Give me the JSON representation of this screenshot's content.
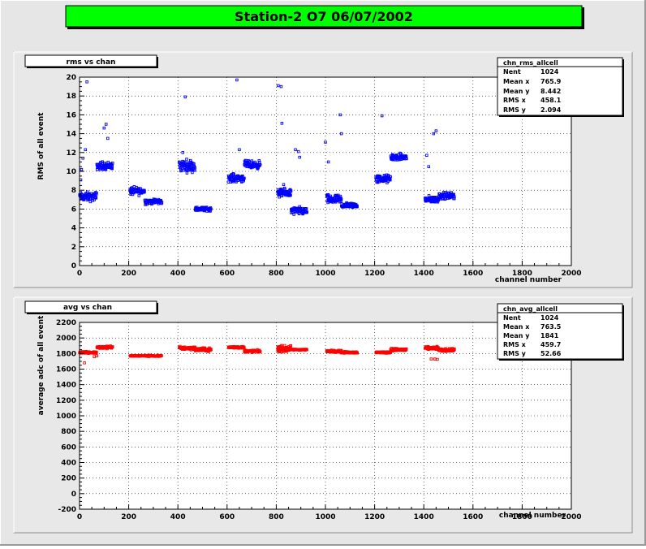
{
  "page": {
    "title": "Station-2 O7 06/07/2002",
    "colors": {
      "background": "#e6e6e6",
      "title_bg": "#00ff00",
      "frame": "#e8e8e8",
      "plot_bg": "#ffffff",
      "grid": "#000000"
    }
  },
  "chart_data": [
    {
      "type": "scatter",
      "panel_label": "rms vs chan",
      "xlabel": "channel number",
      "ylabel": "RMS of all event",
      "xlim": [
        0,
        2000
      ],
      "ylim": [
        0,
        20
      ],
      "x_ticks": [
        0,
        200,
        400,
        600,
        800,
        1000,
        1200,
        1400,
        1600,
        1800,
        2000
      ],
      "y_ticks": [
        0,
        2,
        4,
        6,
        8,
        10,
        12,
        14,
        16,
        18,
        20
      ],
      "y_tick_labels": [
        "0",
        "2",
        "4",
        "6",
        "8",
        "10",
        "12",
        "14",
        "16",
        "18",
        "20"
      ],
      "grid": true,
      "marker_color": "#0000ff",
      "stats": {
        "title": "chn_rms_allcell",
        "rows": [
          {
            "label": "Nent",
            "value": "1024"
          },
          {
            "label": "Mean x",
            "value": "765.9"
          },
          {
            "label": "Mean y",
            "value": "8.442"
          },
          {
            "label": "RMS x",
            "value": "458.1"
          },
          {
            "label": "RMS y",
            "value": "2.094"
          }
        ]
      },
      "clusters": [
        {
          "x": [
            0,
            70
          ],
          "y": 7.3,
          "spread": 0.7
        },
        {
          "x": [
            70,
            135
          ],
          "y": 10.6,
          "spread": 0.6
        },
        {
          "x": [
            205,
            265
          ],
          "y": 7.9,
          "spread": 0.6
        },
        {
          "x": [
            265,
            335
          ],
          "y": 6.8,
          "spread": 0.4
        },
        {
          "x": [
            405,
            470
          ],
          "y": 10.6,
          "spread": 0.9
        },
        {
          "x": [
            470,
            535
          ],
          "y": 6.0,
          "spread": 0.3
        },
        {
          "x": [
            605,
            670
          ],
          "y": 9.3,
          "spread": 0.6
        },
        {
          "x": [
            670,
            735
          ],
          "y": 10.7,
          "spread": 0.6
        },
        {
          "x": [
            805,
            860
          ],
          "y": 7.7,
          "spread": 0.6
        },
        {
          "x": [
            860,
            925
          ],
          "y": 5.8,
          "spread": 0.6
        },
        {
          "x": [
            1005,
            1065
          ],
          "y": 7.0,
          "spread": 0.7
        },
        {
          "x": [
            1065,
            1130
          ],
          "y": 6.4,
          "spread": 0.4
        },
        {
          "x": [
            1205,
            1265
          ],
          "y": 9.2,
          "spread": 0.6
        },
        {
          "x": [
            1265,
            1330
          ],
          "y": 11.5,
          "spread": 0.5
        },
        {
          "x": [
            1405,
            1460
          ],
          "y": 7.0,
          "spread": 0.5
        },
        {
          "x": [
            1460,
            1525
          ],
          "y": 7.4,
          "spread": 0.5
        }
      ],
      "outliers": [
        [
          5,
          9.1
        ],
        [
          8,
          10.2
        ],
        [
          14,
          11.4
        ],
        [
          24,
          12.3
        ],
        [
          30,
          19.5
        ],
        [
          100,
          14.6
        ],
        [
          108,
          15.0
        ],
        [
          115,
          13.5
        ],
        [
          420,
          12.0
        ],
        [
          430,
          17.9
        ],
        [
          640,
          19.7
        ],
        [
          650,
          12.3
        ],
        [
          808,
          19.1
        ],
        [
          820,
          19.0
        ],
        [
          823,
          15.1
        ],
        [
          830,
          8.6
        ],
        [
          878,
          12.3
        ],
        [
          890,
          12.1
        ],
        [
          895,
          11.5
        ],
        [
          1000,
          13.1
        ],
        [
          1012,
          11.0
        ],
        [
          1060,
          16.0
        ],
        [
          1065,
          14.0
        ],
        [
          1230,
          15.9
        ],
        [
          1412,
          11.7
        ],
        [
          1420,
          10.5
        ],
        [
          1440,
          14.0
        ],
        [
          1450,
          14.3
        ]
      ]
    },
    {
      "type": "scatter",
      "panel_label": "avg vs chan",
      "xlabel": "channel number",
      "ylabel": "average adc of all event",
      "xlim": [
        0,
        2000
      ],
      "ylim": [
        -200,
        2200
      ],
      "x_ticks": [
        0,
        200,
        400,
        600,
        800,
        1000,
        1200,
        1400,
        1600,
        1800,
        2000
      ],
      "y_ticks": [
        -200,
        0,
        200,
        400,
        600,
        800,
        1000,
        1200,
        1400,
        1600,
        1800,
        2000,
        2200
      ],
      "y_tick_labels": [
        "-200",
        "0",
        "200",
        "400",
        "600",
        "800",
        "1000",
        "1200",
        "1400",
        "1600",
        "1800",
        "2000",
        "2200"
      ],
      "grid": true,
      "marker_color": "#ff0000",
      "stats": {
        "title": "chn_avg_allcell",
        "rows": [
          {
            "label": "Nent",
            "value": "1024"
          },
          {
            "label": "Mean x",
            "value": "763.5"
          },
          {
            "label": "Mean y",
            "value": "1841"
          },
          {
            "label": "RMS x",
            "value": "459.7"
          },
          {
            "label": "RMS y",
            "value": "52.66"
          }
        ]
      },
      "clusters": [
        {
          "x": [
            0,
            70
          ],
          "y": 1815,
          "spread": 20
        },
        {
          "x": [
            70,
            135
          ],
          "y": 1880,
          "spread": 25
        },
        {
          "x": [
            205,
            335
          ],
          "y": 1770,
          "spread": 15
        },
        {
          "x": [
            405,
            470
          ],
          "y": 1870,
          "spread": 30
        },
        {
          "x": [
            470,
            535
          ],
          "y": 1850,
          "spread": 30
        },
        {
          "x": [
            605,
            670
          ],
          "y": 1880,
          "spread": 20
        },
        {
          "x": [
            670,
            735
          ],
          "y": 1830,
          "spread": 25
        },
        {
          "x": [
            805,
            860
          ],
          "y": 1860,
          "spread": 55
        },
        {
          "x": [
            860,
            925
          ],
          "y": 1850,
          "spread": 10
        },
        {
          "x": [
            1005,
            1065
          ],
          "y": 1830,
          "spread": 20
        },
        {
          "x": [
            1065,
            1130
          ],
          "y": 1815,
          "spread": 15
        },
        {
          "x": [
            1205,
            1265
          ],
          "y": 1815,
          "spread": 15
        },
        {
          "x": [
            1265,
            1330
          ],
          "y": 1850,
          "spread": 25
        },
        {
          "x": [
            1405,
            1460
          ],
          "y": 1870,
          "spread": 25
        },
        {
          "x": [
            1460,
            1525
          ],
          "y": 1845,
          "spread": 25
        }
      ],
      "outliers": [
        [
          20,
          1680
        ],
        [
          60,
          1760
        ],
        [
          70,
          1770
        ],
        [
          1430,
          1730
        ],
        [
          1445,
          1730
        ],
        [
          1455,
          1725
        ]
      ]
    }
  ]
}
